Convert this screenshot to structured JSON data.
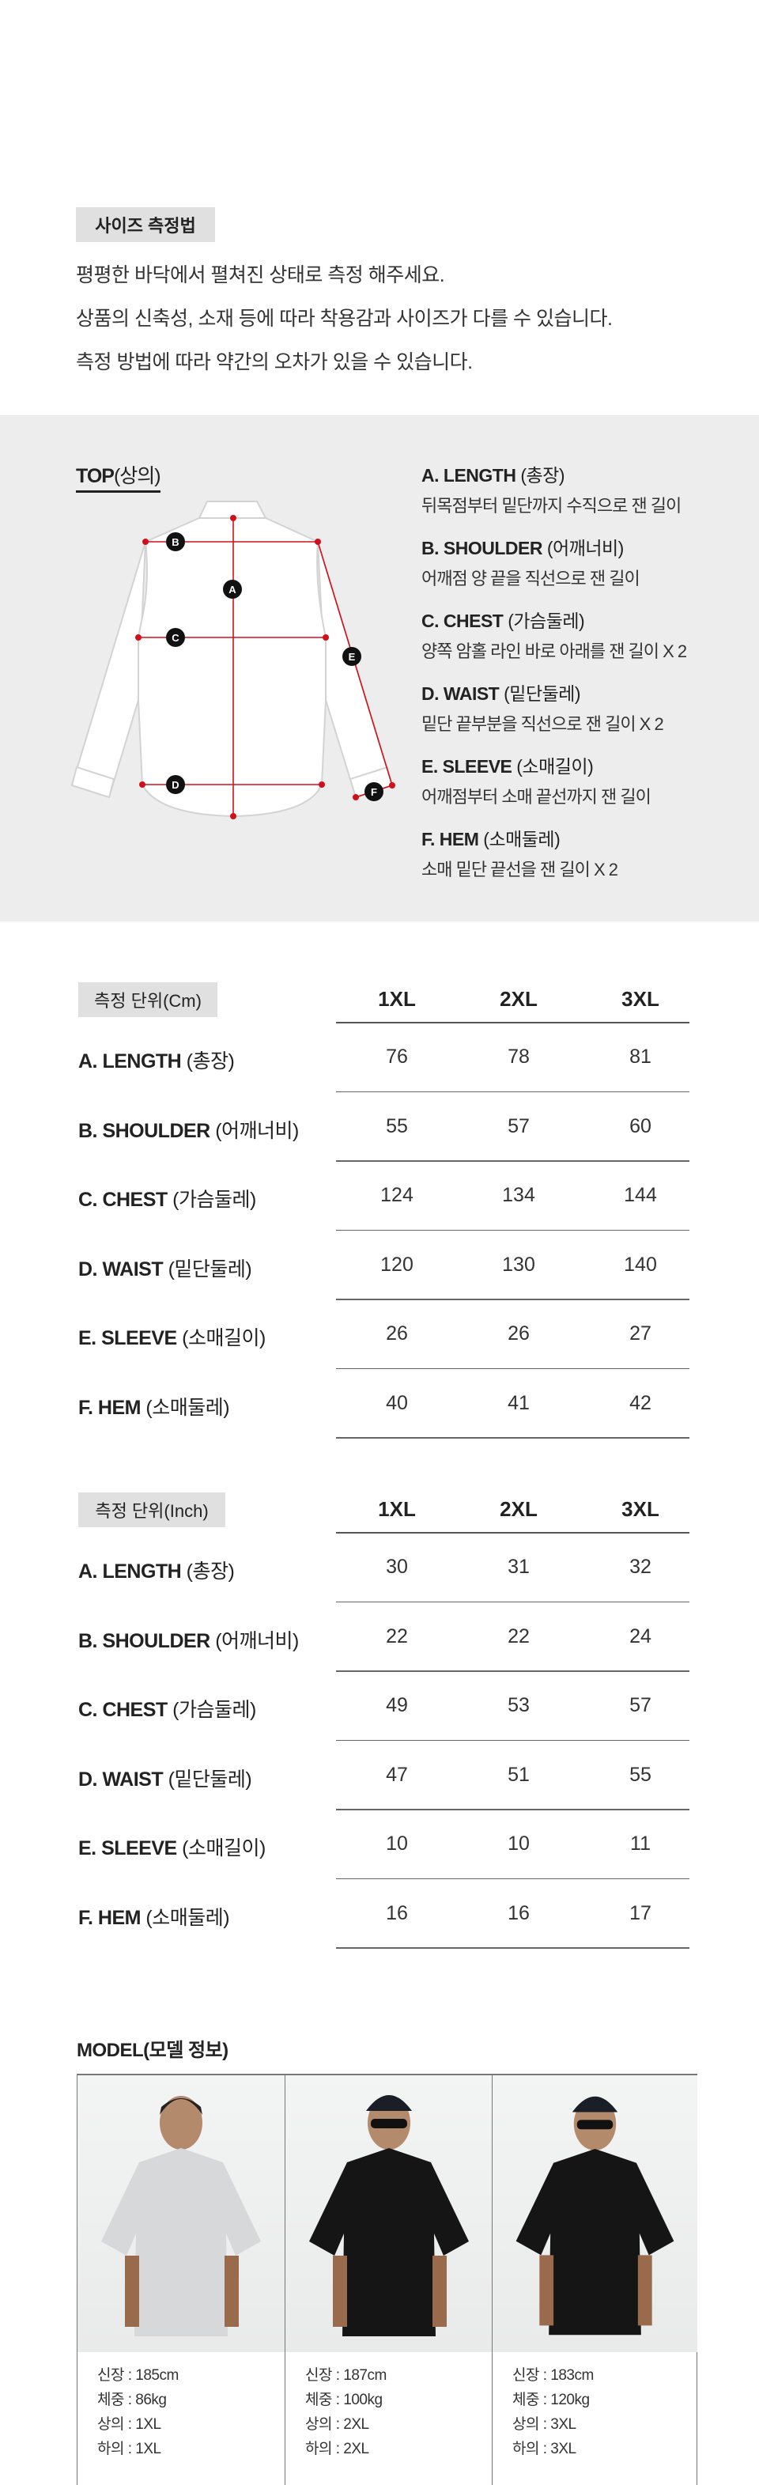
{
  "intro": {
    "title": "사이즈 측정법",
    "lines": [
      "평평한 바닥에서 펼쳐진 상태로 측정 해주세요.",
      "상품의 신축성, 소재 등에 따라 착용감과 사이즈가 다를 수 있습니다.",
      "측정 방법에 따라 약간의 오차가 있을 수 있습니다."
    ]
  },
  "guide": {
    "top_label": "TOP",
    "top_label_kr": "(상의)",
    "marker_letters": [
      "A",
      "B",
      "C",
      "D",
      "E",
      "F"
    ],
    "accent_color": "#d0111b",
    "measures": [
      {
        "title": "A.  LENGTH",
        "kr": "(총장)",
        "desc": "뒤목점부터 밑단까지 수직으로 잰 길이"
      },
      {
        "title": "B.  SHOULDER",
        "kr": "(어깨너비)",
        "desc": "어깨점 양 끝을 직선으로 잰 길이"
      },
      {
        "title": "C.  CHEST",
        "kr": "(가슴둘레)",
        "desc": "양쪽 암홀 라인 바로 아래를 잰 길이 X 2"
      },
      {
        "title": "D.  WAIST",
        "kr": "(밑단둘레)",
        "desc": "밑단 끝부분을 직선으로 잰 길이 X 2"
      },
      {
        "title": "E.  SLEEVE",
        "kr": "(소매길이)",
        "desc": "어깨점부터 소매 끝선까지 잰 길이"
      },
      {
        "title": "F.  HEM",
        "kr": "(소매둘레)",
        "desc": "소매 밑단 끝선을 잰 길이 X 2"
      }
    ]
  },
  "tables": [
    {
      "unit_label": "측정 단위(Cm)",
      "columns": [
        "1XL",
        "2XL",
        "3XL"
      ],
      "rows": [
        {
          "label": "A.  LENGTH",
          "kr": "(총장)",
          "values": [
            "76",
            "78",
            "81"
          ]
        },
        {
          "label": "B.  SHOULDER",
          "kr": "(어깨너비)",
          "values": [
            "55",
            "57",
            "60"
          ]
        },
        {
          "label": "C.  CHEST",
          "kr": "(가슴둘레)",
          "values": [
            "124",
            "134",
            "144"
          ]
        },
        {
          "label": "D.  WAIST",
          "kr": "(밑단둘레)",
          "values": [
            "120",
            "130",
            "140"
          ]
        },
        {
          "label": "E.  SLEEVE",
          "kr": "(소매길이)",
          "values": [
            "26",
            "26",
            "27"
          ]
        },
        {
          "label": "F.  HEM",
          "kr": "(소매둘레)",
          "values": [
            "40",
            "41",
            "42"
          ]
        }
      ]
    },
    {
      "unit_label": "측정 단위(Inch)",
      "columns": [
        "1XL",
        "2XL",
        "3XL"
      ],
      "rows": [
        {
          "label": "A.  LENGTH",
          "kr": "(총장)",
          "values": [
            "30",
            "31",
            "32"
          ]
        },
        {
          "label": "B.  SHOULDER",
          "kr": "(어깨너비)",
          "values": [
            "22",
            "22",
            "24"
          ]
        },
        {
          "label": "C.  CHEST",
          "kr": "(가슴둘레)",
          "values": [
            "49",
            "53",
            "57"
          ]
        },
        {
          "label": "D.  WAIST",
          "kr": "(밑단둘레)",
          "values": [
            "47",
            "51",
            "55"
          ]
        },
        {
          "label": "E.  SLEEVE",
          "kr": "(소매길이)",
          "values": [
            "10",
            "10",
            "11"
          ]
        },
        {
          "label": "F.  HEM",
          "kr": "(소매둘레)",
          "values": [
            "16",
            "16",
            "17"
          ]
        }
      ]
    }
  ],
  "models": {
    "title": "MODEL(모델 정보)",
    "items": [
      {
        "shirt_color": "#d6d8d9",
        "lines": [
          "신장 : 185cm",
          "체중 : 86kg",
          "상의 : 1XL",
          "하의 : 1XL"
        ]
      },
      {
        "shirt_color": "#151515",
        "lines": [
          "신장 : 187cm",
          "체중 : 100kg",
          "상의 : 2XL",
          "하의 : 2XL"
        ]
      },
      {
        "shirt_color": "#151515",
        "lines": [
          "신장 : 183cm",
          "체중 : 120kg",
          "상의 : 3XL",
          "하의 : 3XL"
        ]
      }
    ]
  }
}
